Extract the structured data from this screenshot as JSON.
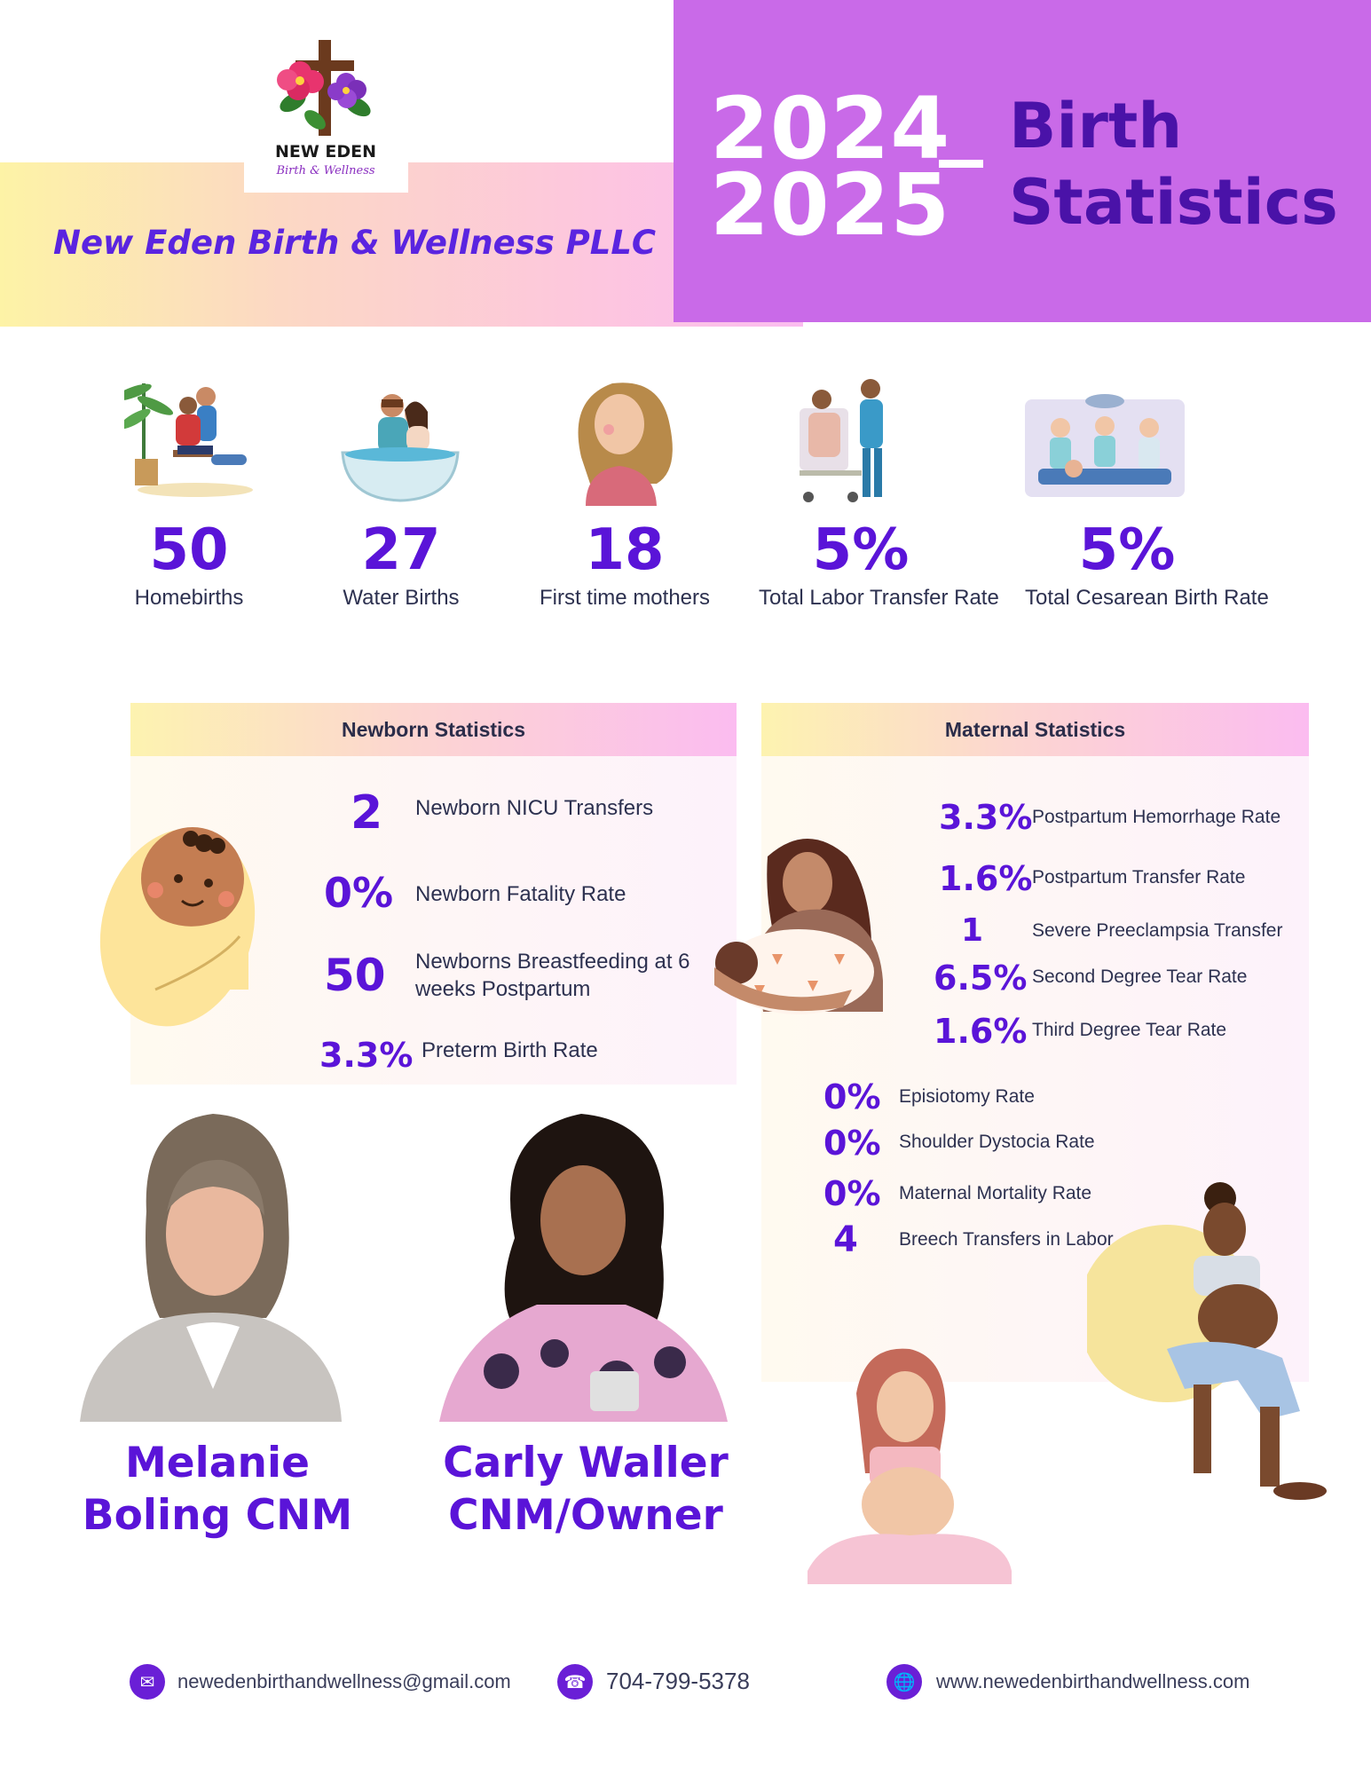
{
  "header": {
    "logo_line1": "NEW EDEN",
    "logo_line2": "Birth & Wellness",
    "company": "New Eden Birth & Wellness PLLC",
    "year1": "2024",
    "year2": "2025",
    "title_line1": "Birth",
    "title_line2": "Statistics"
  },
  "top_stats": [
    {
      "value": "50",
      "label": "Homebirths",
      "icon": "family-labor-illustration"
    },
    {
      "value": "27",
      "label": "Water Births",
      "icon": "water-birth-tub-illustration"
    },
    {
      "value": "18",
      "label": "First time mothers",
      "icon": "pregnant-woman-illustration"
    },
    {
      "value": "5%",
      "label": "Total Labor Transfer Rate",
      "icon": "hospital-transfer-illustration"
    },
    {
      "value": "5%",
      "label": "Total Cesarean Birth Rate",
      "icon": "operating-room-illustration"
    }
  ],
  "newborn": {
    "title": "Newborn Statistics",
    "items": [
      {
        "value": "2",
        "label": "Newborn NICU Transfers"
      },
      {
        "value": "0%",
        "label": "Newborn Fatality Rate"
      },
      {
        "value": "50",
        "label": "Newborns Breastfeeding at 6 weeks Postpartum"
      },
      {
        "value": "3.3%",
        "label": "Preterm Birth Rate"
      }
    ]
  },
  "maternal": {
    "title": "Maternal Statistics",
    "items": [
      {
        "value": "3.3%",
        "label": "Postpartum Hemorrhage Rate"
      },
      {
        "value": "1.6%",
        "label": "Postpartum Transfer Rate"
      },
      {
        "value": "1",
        "label": "Severe Preeclampsia Transfer"
      },
      {
        "value": "6.5%",
        "label": "Second Degree Tear Rate"
      },
      {
        "value": "1.6%",
        "label": "Third Degree Tear Rate"
      },
      {
        "value": "0%",
        "label": "Episiotomy Rate"
      },
      {
        "value": "0%",
        "label": "Shoulder Dystocia Rate"
      },
      {
        "value": "0%",
        "label": "Maternal Mortality Rate"
      },
      {
        "value": "4",
        "label": "Breech Transfers in Labor"
      }
    ]
  },
  "people": [
    {
      "line1": "Melanie",
      "line2": "Boling CNM"
    },
    {
      "line1": "Carly Waller",
      "line2": "CNM/Owner"
    }
  ],
  "footer": {
    "email": "newedenbirthandwellness@gmail.com",
    "phone": "704-799-5378",
    "website": "www.newedenbirthandwellness.com",
    "email_icon": "mail-icon",
    "phone_icon": "phone-icon",
    "web_icon": "globe-icon"
  },
  "colors": {
    "accent": "#5a14d8",
    "header_purple": "#c96ae8",
    "title_dark": "#4a12a8"
  }
}
